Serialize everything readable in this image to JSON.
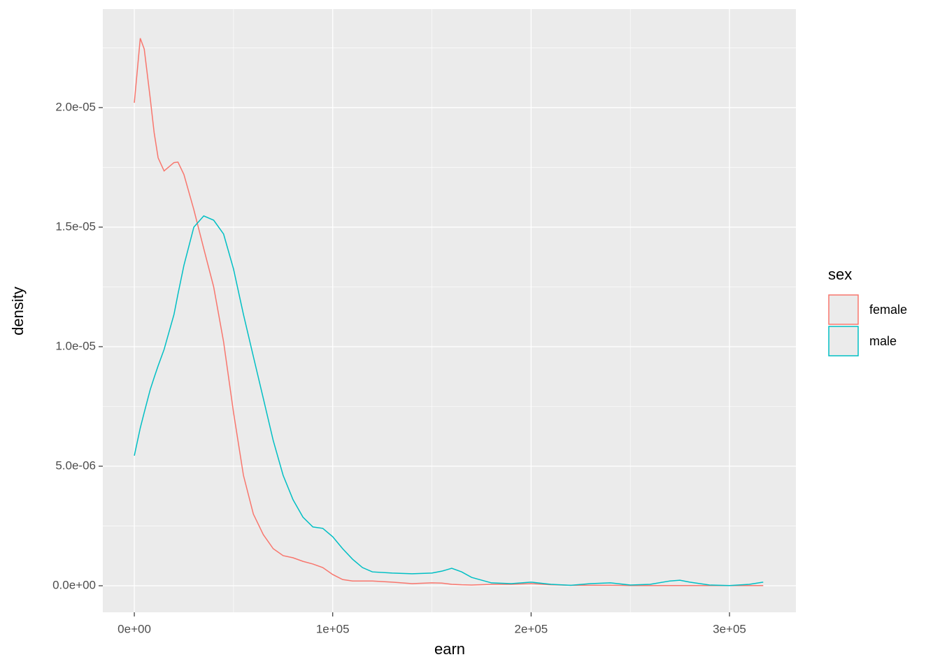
{
  "chart_data": {
    "type": "line",
    "x_label": "earn",
    "y_label": "density",
    "legend_title": "sex",
    "legend_position": "right",
    "grid": true,
    "background": "#EBEBEB",
    "xlim": [
      -15880,
      333480
    ],
    "ylim": [
      -1.11e-06,
      2.412e-05
    ],
    "xticks": [
      {
        "value": 0,
        "label": "0e+00"
      },
      {
        "value": 100000,
        "label": "1e+05"
      },
      {
        "value": 200000,
        "label": "2e+05"
      },
      {
        "value": 300000,
        "label": "3e+05"
      }
    ],
    "yticks": [
      {
        "value": 0,
        "label": "0.0e+00"
      },
      {
        "value": 5e-06,
        "label": "5.0e-06"
      },
      {
        "value": 1e-05,
        "label": "1.0e-05"
      },
      {
        "value": 1.5e-05,
        "label": "1.5e-05"
      },
      {
        "value": 2e-05,
        "label": "2.0e-05"
      }
    ],
    "xminor": [
      50000,
      150000,
      250000
    ],
    "yminor": [
      2.5e-06,
      7.5e-06,
      1.25e-05,
      1.75e-05,
      2.25e-05
    ],
    "x": [
      0,
      3000,
      5000,
      8000,
      10000,
      12000,
      15000,
      20000,
      22000,
      25000,
      30000,
      35000,
      40000,
      45000,
      50000,
      55000,
      60000,
      65000,
      70000,
      75000,
      80000,
      85000,
      90000,
      95000,
      100000,
      105000,
      110000,
      115000,
      120000,
      130000,
      140000,
      150000,
      155000,
      160000,
      165000,
      170000,
      180000,
      190000,
      200000,
      210000,
      220000,
      230000,
      240000,
      250000,
      260000,
      270000,
      275000,
      280000,
      290000,
      300000,
      310000,
      317000
    ],
    "series": [
      {
        "name": "female",
        "color": "#F8766D",
        "values": [
          2.02e-05,
          2.29e-05,
          2.245e-05,
          2.04e-05,
          1.895e-05,
          1.79e-05,
          1.735e-05,
          1.77e-05,
          1.772e-05,
          1.72e-05,
          1.573e-05,
          1.41e-05,
          1.25e-05,
          1.02e-05,
          7.25e-06,
          4.62e-06,
          3e-06,
          2.14e-06,
          1.55e-06,
          1.26e-06,
          1.17e-06,
          1.02e-06,
          9.1e-07,
          7.6e-07,
          4.7e-07,
          2.6e-07,
          2e-07,
          2e-07,
          2e-07,
          1.5e-07,
          9e-08,
          1.2e-07,
          1.1e-07,
          6e-08,
          4e-08,
          3e-08,
          6e-08,
          6e-08,
          9e-08,
          4e-08,
          2e-08,
          2e-08,
          2e-08,
          1e-08,
          1e-08,
          1e-08,
          1e-08,
          1e-08,
          1e-08,
          1e-08,
          1e-08,
          1e-08
        ]
      },
      {
        "name": "male",
        "color": "#00BFC4",
        "values": [
          5.44e-06,
          6.6e-06,
          7.25e-06,
          8.2e-06,
          8.71e-06,
          9.2e-06,
          9.88e-06,
          1.135e-05,
          1.22e-05,
          1.34e-05,
          1.5e-05,
          1.547e-05,
          1.529e-05,
          1.471e-05,
          1.325e-05,
          1.135e-05,
          9.59e-06,
          7.84e-06,
          6.08e-06,
          4.62e-06,
          3.6e-06,
          2.87e-06,
          2.46e-06,
          2.4e-06,
          2.05e-06,
          1.55e-06,
          1.11e-06,
          7.6e-07,
          5.8e-07,
          5.3e-07,
          5e-07,
          5.3e-07,
          6.1e-07,
          7.3e-07,
          5.8e-07,
          3.5e-07,
          1.2e-07,
          9e-08,
          1.5e-07,
          6e-08,
          2e-08,
          9e-08,
          1.2e-07,
          3e-08,
          6e-08,
          2e-07,
          2.3e-07,
          1.5e-07,
          3e-08,
          1e-08,
          6e-08,
          1.5e-07
        ]
      }
    ]
  }
}
